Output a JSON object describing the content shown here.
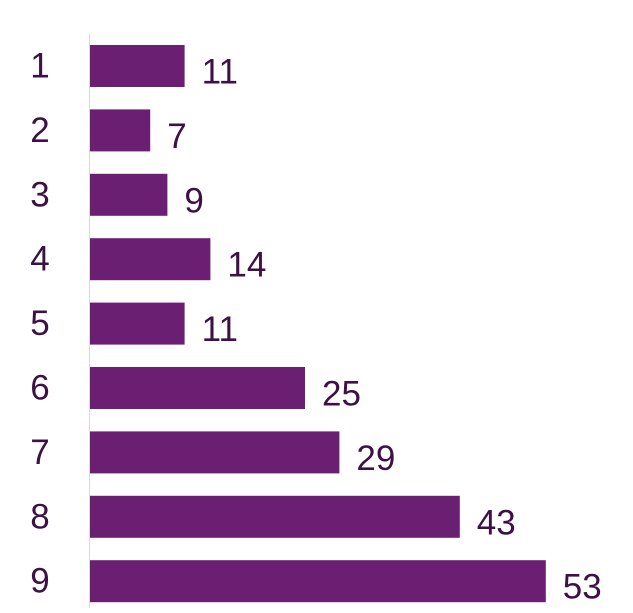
{
  "colors": {
    "bar": "#6a1f72",
    "text": "#3d1046",
    "axis": "#d9d9d9",
    "background": "#ffffff"
  },
  "chart_data": {
    "type": "bar",
    "orientation": "horizontal",
    "categories": [
      "1",
      "2",
      "3",
      "4",
      "5",
      "6",
      "7",
      "8",
      "9"
    ],
    "values": [
      11,
      7,
      9,
      14,
      11,
      25,
      29,
      43,
      53
    ],
    "data_labels": [
      "11",
      "7",
      "9",
      "14",
      "11",
      "25",
      "29",
      "43",
      "53"
    ],
    "grid": false,
    "legend": "none"
  }
}
